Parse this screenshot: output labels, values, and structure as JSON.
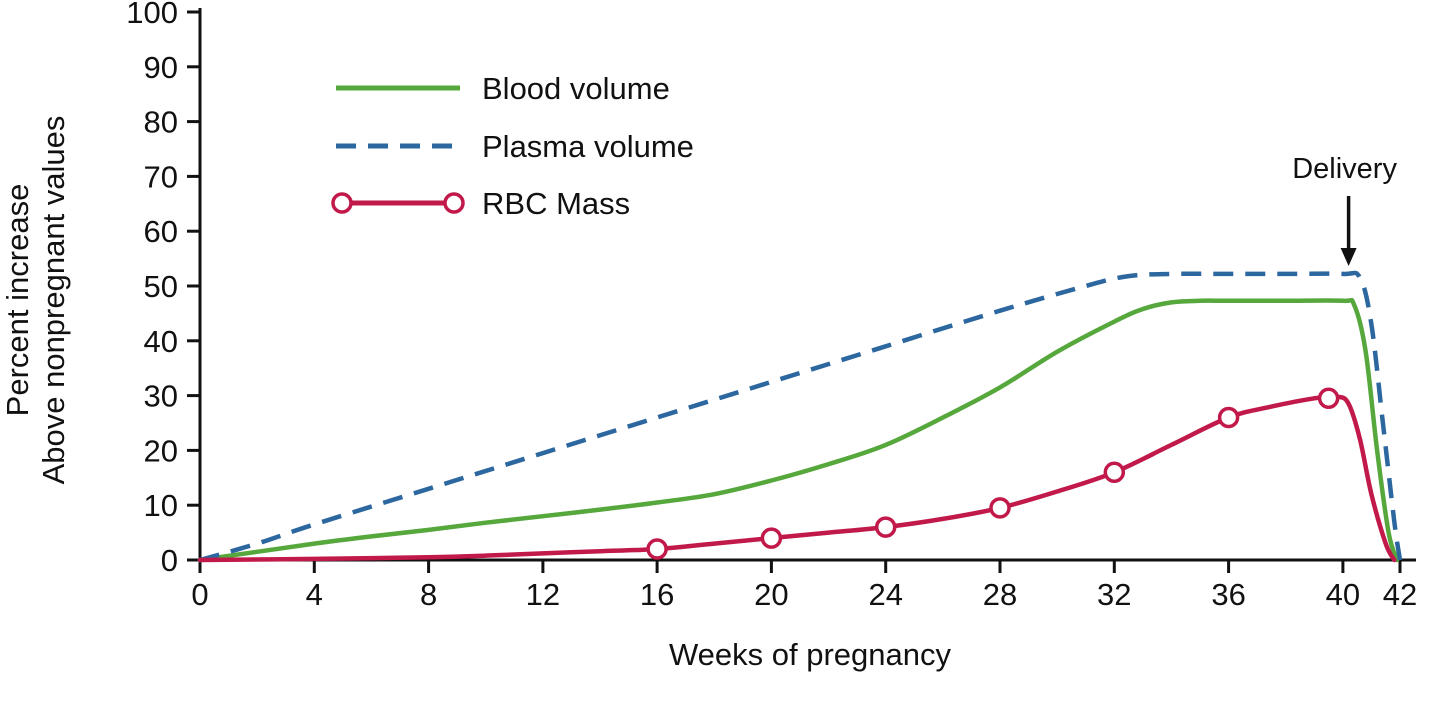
{
  "chart_data": {
    "type": "line",
    "title": "",
    "xlabel": "Weeks of pregnancy",
    "ylabel_line1": "Percent increase",
    "ylabel_line2": "Above nonpregnant values",
    "xlim": [
      0,
      42
    ],
    "ylim": [
      0,
      100
    ],
    "x_ticks": [
      0,
      4,
      8,
      12,
      16,
      20,
      24,
      28,
      32,
      36,
      40,
      42
    ],
    "y_ticks": [
      0,
      10,
      20,
      30,
      40,
      50,
      60,
      70,
      80,
      90,
      100
    ],
    "grid": false,
    "legend_position": "upper-left-inside",
    "axis_color": "#111111",
    "annotation": {
      "label": "Delivery",
      "x": 40.2
    },
    "series": [
      {
        "name": "Blood volume",
        "color": "#56a83c",
        "style": "solid",
        "points": [
          [
            0,
            0
          ],
          [
            2,
            1.5
          ],
          [
            4,
            3
          ],
          [
            6,
            4.3
          ],
          [
            8,
            5.5
          ],
          [
            10,
            6.8
          ],
          [
            12,
            8
          ],
          [
            14,
            9.2
          ],
          [
            16,
            10.5
          ],
          [
            18,
            12
          ],
          [
            20,
            14.5
          ],
          [
            22,
            17.5
          ],
          [
            24,
            21
          ],
          [
            26,
            26
          ],
          [
            28,
            31.5
          ],
          [
            30,
            38
          ],
          [
            32,
            43.5
          ],
          [
            33,
            45.8
          ],
          [
            34,
            47
          ],
          [
            35,
            47.3
          ],
          [
            36,
            47.3
          ],
          [
            38,
            47.3
          ],
          [
            40,
            47.3
          ],
          [
            40.4,
            46.5
          ],
          [
            40.8,
            38
          ],
          [
            41.2,
            20
          ],
          [
            41.6,
            5
          ],
          [
            41.9,
            0
          ]
        ]
      },
      {
        "name": "Plasma volume",
        "color": "#2c679f",
        "style": "dashed",
        "points": [
          [
            0,
            0
          ],
          [
            2,
            3
          ],
          [
            4,
            6.5
          ],
          [
            8,
            13
          ],
          [
            12,
            19.5
          ],
          [
            16,
            26
          ],
          [
            20,
            32.5
          ],
          [
            24,
            39
          ],
          [
            28,
            45.5
          ],
          [
            31,
            50
          ],
          [
            32.5,
            51.8
          ],
          [
            34,
            52.2
          ],
          [
            36,
            52.2
          ],
          [
            38,
            52.2
          ],
          [
            40,
            52.2
          ],
          [
            40.6,
            51.5
          ],
          [
            41,
            43
          ],
          [
            41.4,
            25
          ],
          [
            41.8,
            7
          ],
          [
            42,
            0
          ]
        ]
      },
      {
        "name": "RBC Mass",
        "color": "#c2194b",
        "style": "solid-markers",
        "points": [
          [
            0,
            0
          ],
          [
            4,
            0.2
          ],
          [
            8,
            0.5
          ],
          [
            10,
            0.8
          ],
          [
            12,
            1.2
          ],
          [
            14,
            1.6
          ],
          [
            16,
            2
          ],
          [
            18,
            3
          ],
          [
            20,
            4
          ],
          [
            22,
            5
          ],
          [
            24,
            6
          ],
          [
            26,
            7.5
          ],
          [
            28,
            9.5
          ],
          [
            30,
            12.5
          ],
          [
            32,
            16
          ],
          [
            34,
            21
          ],
          [
            36,
            26
          ],
          [
            37.5,
            28
          ],
          [
            39,
            29.5
          ],
          [
            39.8,
            29.8
          ],
          [
            40.2,
            28.5
          ],
          [
            40.6,
            22
          ],
          [
            41,
            12
          ],
          [
            41.5,
            3
          ],
          [
            41.8,
            0
          ]
        ],
        "markers": [
          [
            16,
            2
          ],
          [
            20,
            4
          ],
          [
            24,
            6
          ],
          [
            28,
            9.5
          ],
          [
            32,
            16
          ],
          [
            36,
            26
          ],
          [
            39.5,
            29.5
          ]
        ]
      }
    ]
  }
}
